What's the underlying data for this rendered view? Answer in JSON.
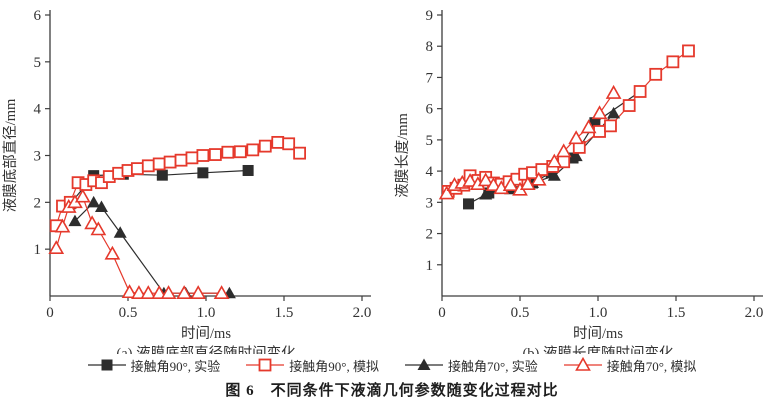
{
  "figure": {
    "caption": "图 6　不同条件下液滴几何参数随变化过程对比",
    "colors": {
      "experiment_black": "#2d2d2d",
      "simulation_red": "#e5392c",
      "axis": "#3d3d3d"
    },
    "legend": [
      {
        "label": "接触角90°, 实验",
        "marker": "square-filled",
        "color": "#2d2d2d"
      },
      {
        "label": "接触角90°, 模拟",
        "marker": "square-open",
        "color": "#e5392c"
      },
      {
        "label": "接触角70°, 实验",
        "marker": "triangle-filled",
        "color": "#2d2d2d"
      },
      {
        "label": "接触角70°, 模拟",
        "marker": "triangle-open",
        "color": "#e5392c"
      }
    ]
  },
  "chart_data": [
    {
      "type": "line",
      "panel": "a",
      "subtitle": "(a) 液膜底部直径随时间变化",
      "xlabel": "时间/ms",
      "ylabel": "液膜底部直径/mm",
      "xlim": [
        0,
        2.0
      ],
      "ylim": [
        0,
        6
      ],
      "xticks": [
        "0",
        "0.5",
        "1.0",
        "1.5",
        "2.0"
      ],
      "yticks": [
        1,
        2,
        3,
        4,
        5,
        6
      ],
      "grid": false,
      "legend_position": "bottom",
      "series": [
        {
          "name": "接触角90°, 实验",
          "marker": "square-filled",
          "color": "#2d2d2d",
          "points": [
            [
              0.13,
              1.97
            ],
            [
              0.28,
              2.57
            ],
            [
              0.47,
              2.6
            ],
            [
              0.72,
              2.58
            ],
            [
              0.98,
              2.63
            ],
            [
              1.27,
              2.68
            ]
          ]
        },
        {
          "name": "接触角70°, 实验",
          "marker": "triangle-filled",
          "color": "#2d2d2d",
          "points": [
            [
              0.16,
              1.6
            ],
            [
              0.28,
              2.0
            ],
            [
              0.33,
              1.9
            ],
            [
              0.45,
              1.35
            ],
            [
              0.73,
              0.06
            ],
            [
              0.87,
              0.06
            ],
            [
              1.15,
              0.06
            ]
          ]
        },
        {
          "name": "接触角90°, 模拟",
          "marker": "square-open",
          "color": "#e5392c",
          "points": [
            [
              0.04,
              1.5
            ],
            [
              0.08,
              1.92
            ],
            [
              0.13,
              2.0
            ],
            [
              0.18,
              2.42
            ],
            [
              0.23,
              2.38
            ],
            [
              0.28,
              2.46
            ],
            [
              0.33,
              2.42
            ],
            [
              0.38,
              2.55
            ],
            [
              0.44,
              2.62
            ],
            [
              0.5,
              2.68
            ],
            [
              0.56,
              2.72
            ],
            [
              0.63,
              2.78
            ],
            [
              0.7,
              2.82
            ],
            [
              0.77,
              2.86
            ],
            [
              0.84,
              2.9
            ],
            [
              0.91,
              2.95
            ],
            [
              0.98,
              3.0
            ],
            [
              1.06,
              3.02
            ],
            [
              1.14,
              3.07
            ],
            [
              1.22,
              3.08
            ],
            [
              1.3,
              3.12
            ],
            [
              1.38,
              3.2
            ],
            [
              1.46,
              3.28
            ],
            [
              1.53,
              3.25
            ],
            [
              1.6,
              3.05
            ]
          ]
        },
        {
          "name": "接触角70°, 模拟",
          "marker": "triangle-open",
          "color": "#e5392c",
          "points": [
            [
              0.04,
              1.02
            ],
            [
              0.08,
              1.48
            ],
            [
              0.12,
              1.9
            ],
            [
              0.16,
              2.0
            ],
            [
              0.21,
              2.12
            ],
            [
              0.27,
              1.55
            ],
            [
              0.31,
              1.42
            ],
            [
              0.4,
              0.9
            ],
            [
              0.51,
              0.08
            ],
            [
              0.57,
              0.06
            ],
            [
              0.63,
              0.06
            ],
            [
              0.7,
              0.06
            ],
            [
              0.76,
              0.06
            ],
            [
              0.86,
              0.06
            ],
            [
              0.95,
              0.06
            ],
            [
              1.1,
              0.06
            ]
          ]
        }
      ]
    },
    {
      "type": "line",
      "panel": "b",
      "subtitle": "(b) 液膜长度随时间变化",
      "xlabel": "时间/ms",
      "ylabel": "液膜长度/mm",
      "xlim": [
        0,
        2.0
      ],
      "ylim": [
        0,
        9
      ],
      "xticks": [
        "0",
        "0.5",
        "1.0",
        "1.5",
        "2.0"
      ],
      "yticks": [
        1,
        2,
        3,
        4,
        5,
        6,
        7,
        8,
        9
      ],
      "grid": false,
      "legend_position": "bottom",
      "series": [
        {
          "name": "接触角90°, 实验",
          "marker": "square-filled",
          "color": "#2d2d2d",
          "points": [
            [
              0.17,
              2.95
            ],
            [
              0.3,
              3.3
            ],
            [
              0.44,
              3.45
            ],
            [
              0.58,
              3.62
            ],
            [
              0.7,
              3.95
            ],
            [
              0.84,
              4.42
            ],
            [
              0.98,
              5.55
            ],
            [
              1.27,
              6.55
            ]
          ]
        },
        {
          "name": "接触角70°, 实验",
          "marker": "triangle-filled",
          "color": "#2d2d2d",
          "points": [
            [
              0.28,
              3.25
            ],
            [
              0.44,
              3.42
            ],
            [
              0.58,
              3.62
            ],
            [
              0.72,
              3.85
            ],
            [
              0.86,
              4.48
            ],
            [
              1.1,
              5.85
            ]
          ]
        },
        {
          "name": "接触角90°, 模拟",
          "marker": "square-open",
          "color": "#e5392c",
          "points": [
            [
              0.04,
              3.35
            ],
            [
              0.09,
              3.45
            ],
            [
              0.14,
              3.55
            ],
            [
              0.18,
              3.85
            ],
            [
              0.23,
              3.7
            ],
            [
              0.28,
              3.8
            ],
            [
              0.33,
              3.62
            ],
            [
              0.38,
              3.58
            ],
            [
              0.43,
              3.66
            ],
            [
              0.48,
              3.74
            ],
            [
              0.53,
              3.9
            ],
            [
              0.58,
              3.95
            ],
            [
              0.64,
              4.05
            ],
            [
              0.71,
              4.15
            ],
            [
              0.78,
              4.3
            ],
            [
              0.88,
              4.76
            ],
            [
              1.01,
              5.27
            ],
            [
              1.08,
              5.45
            ],
            [
              1.2,
              6.1
            ],
            [
              1.27,
              6.55
            ],
            [
              1.37,
              7.1
            ],
            [
              1.48,
              7.5
            ],
            [
              1.58,
              7.85
            ]
          ]
        },
        {
          "name": "接触角70°, 模拟",
          "marker": "triangle-open",
          "color": "#e5392c",
          "points": [
            [
              0.03,
              3.28
            ],
            [
              0.08,
              3.55
            ],
            [
              0.13,
              3.62
            ],
            [
              0.18,
              3.68
            ],
            [
              0.23,
              3.58
            ],
            [
              0.28,
              3.7
            ],
            [
              0.33,
              3.55
            ],
            [
              0.38,
              3.45
            ],
            [
              0.44,
              3.55
            ],
            [
              0.5,
              3.4
            ],
            [
              0.55,
              3.58
            ],
            [
              0.62,
              3.72
            ],
            [
              0.72,
              4.3
            ],
            [
              0.78,
              4.63
            ],
            [
              0.86,
              5.05
            ],
            [
              0.94,
              5.4
            ],
            [
              1.01,
              5.85
            ],
            [
              1.1,
              6.5
            ]
          ]
        }
      ]
    }
  ]
}
